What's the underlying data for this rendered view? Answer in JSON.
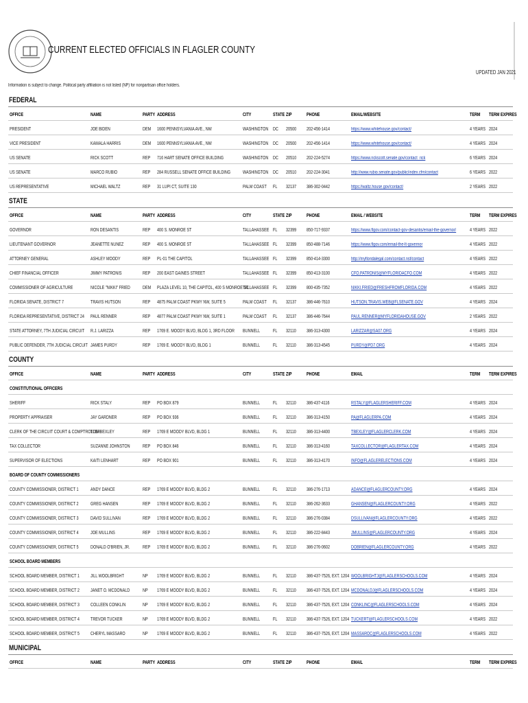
{
  "header": {
    "title": "CURRENT ELECTED OFFICIALS IN FLAGLER COUNTY",
    "updated": "UPDATED JAN 2021",
    "note": "Information is subject to change. Political party affiliation is not listed (NP) for nonpartisan office holders."
  },
  "sections": [
    {
      "title": "FEDERAL",
      "columns": [
        "OFFICE",
        "NAME",
        "PARTY",
        "ADDRESS",
        "CITY",
        "STATE",
        "ZIP",
        "PHONE",
        "EMAIL/WEBSITE",
        "TERM",
        "TERM EXPIRES"
      ],
      "groups": [
        {
          "rows": [
            [
              "PRESIDENT",
              "JOE BIDEN",
              "DEM",
              "1600 PENNSYLVANIA AVE., NW",
              "WASHINGTON",
              "DC",
              "20500",
              "202-456-1414",
              "https://www.whitehouse.gov/contact/",
              "4 YEARS",
              "2024"
            ],
            [
              "VICE PRESIDENT",
              "KAMALA HARRIS",
              "DEM",
              "1600 PENNSYLVANIA AVE., NW",
              "WASHINGTON",
              "DC",
              "20500",
              "202-456-1414",
              "https://www.whitehouse.gov/contact/",
              "4 YEARS",
              "2024"
            ],
            [
              "US SENATE",
              "RICK SCOTT",
              "REP",
              "716 HART SENATE OFFICE BUILDING",
              "WASHINGTON",
              "DC",
              "20510",
              "202-224-5274",
              "https://www.rickscott.senate.gov/contact_rick",
              "6 YEARS",
              "2024"
            ],
            [
              "US SENATE",
              "MARCO RUBIO",
              "REP",
              "284 RUSSELL SENATE OFFICE BUILDING",
              "WASHINGTON",
              "DC",
              "20510",
              "202-224-3041",
              "http://www.rubio.senate.gov/public/index.cfm/contact",
              "6 YEARS",
              "2022"
            ],
            [
              "US REPRESENTATIVE",
              "MICHAEL WALTZ",
              "REP",
              "31 LUPI CT, SUITE 130",
              "PALM COAST",
              "FL",
              "32137",
              "386-302-0442",
              "https://waltz.house.gov/contact/",
              "2 YEARS",
              "2022"
            ]
          ]
        }
      ]
    },
    {
      "title": "STATE",
      "columns": [
        "OFFICE",
        "NAME",
        "PARTY",
        "ADDRESS",
        "CITY",
        "STATE",
        "ZIP",
        "PHONE",
        "EMAIL / WEBSITE",
        "TERM",
        "TERM EXPIRES"
      ],
      "groups": [
        {
          "rows": [
            [
              "GOVERNOR",
              "RON DESANTIS",
              "REP",
              "400 S. MONROE ST",
              "TALLAHASSEE",
              "FL",
              "32399",
              "850-717-9337",
              "https://www.flgov.com/contact-gov-desantis/email-the-governor/",
              "4 YEARS",
              "2022"
            ],
            [
              "LIEUTENANT GOVERNOR",
              "JEANETTE NUNEZ",
              "REP",
              "400 S. MONROE ST",
              "TALLAHASSEE",
              "FL",
              "32399",
              "850-488-7146",
              "https://www.flgov.com/email-the-lt-governor",
              "4 YEARS",
              "2022"
            ],
            [
              "ATTORNEY GENERAL",
              "ASHLEY MOODY",
              "REP",
              "PL-01 THE CAPITOL",
              "TALLAHASSEE",
              "FL",
              "32399",
              "850-414-3300",
              "http://myfloridalegal.com/contact.nsf/contact",
              "4 YEARS",
              "2022"
            ],
            [
              "CHIEF FINANCIAL OFFICER",
              "JIMMY PATRONIS",
              "REP",
              "200 EAST GAINES STREET",
              "TALLAHASSEE",
              "FL",
              "32399",
              "850-413-3100",
              "CFO.PATRONIS@MYFLORIDACFO.COM",
              "4 YEARS",
              "2022"
            ],
            [
              "COMMISSIONER OF AGRICULTURE",
              "NICOLE \"NIKKI\" FRIED",
              "DEM",
              "PLAZA LEVEL 10, THE CAPITOL, 400 S MONROE ST.",
              "TALLAHASSEE",
              "FL",
              "32399",
              "800-435-7352",
              "NIKKI.FRIED@FRESHFROMFLORIDA.COM",
              "4 YEARS",
              "2022"
            ],
            [
              "FLORIDA SENATE, DISTRICT 7",
              "TRAVIS HUTSON",
              "REP",
              "4875 PALM COAST PKWY NW, SUITE 5",
              "PALM COAST",
              "FL",
              "32137",
              "386-446-7610",
              "HUTSON.TRAVIS.WEB@FLSENATE.GOV",
              "4 YEARS",
              "2024"
            ],
            [
              "FLORIDA REPRESENTATIVE, DISTRICT 24",
              "PAUL RENNER",
              "REP",
              "4877 PALM COAST PKWY NW, SUITE 1",
              "PALM COAST",
              "FL",
              "32137",
              "386-446-7644",
              "PAUL.RENNER@MYFLORIDAHOUSE.GOV",
              "2 YEARS",
              "2022"
            ],
            [
              "STATE ATTORNEY, 7TH JUDICIAL CIRCUIT",
              "R.J. LARIZZA",
              "REP",
              "1769 E. MOODY BLVD, BLDG 1, 3RD FLOOR",
              "BUNNELL",
              "FL",
              "32110",
              "386-313-4300",
              "LARIZZAR@SA07.ORG",
              "4 YEARS",
              "2024"
            ],
            [
              "PUBLIC DEFENDER, 7TH JUDICIAL CIRCUIT",
              "JAMES PURDY",
              "REP",
              "1769 E. MOODY BLVD, BLDG 1",
              "BUNNELL",
              "FL",
              "32110",
              "386-313-4545",
              "PURDY@PD7.ORG",
              "4 YEARS",
              "2024"
            ]
          ]
        }
      ]
    },
    {
      "title": "COUNTY",
      "columns": [
        "OFFICE",
        "NAME",
        "PARTY",
        "ADDRESS",
        "CITY",
        "STATE",
        "ZIP",
        "PHONE",
        "EMAIL",
        "TERM",
        "TERM EXPIRES"
      ],
      "groups": [
        {
          "title": "CONSTITUTIONAL OFFICERS",
          "rows": [
            [
              "SHERIFF",
              "RICK STALY",
              "REP",
              "PO BOX 879",
              "BUNNELL",
              "FL",
              "32110",
              "386-437-4116",
              "RSTALY@FLAGLERSHERIFF.COM",
              "4 YEARS",
              "2024"
            ],
            [
              "PROPERTY APPRAISER",
              "JAY GARDNER",
              "REP",
              "PO BOX 936",
              "BUNNELL",
              "FL",
              "32110",
              "386-313-4150",
              "PA@FLAGLERPA.COM",
              "4 YEARS",
              "2024"
            ],
            [
              "CLERK OF THE CIRCUIT COURT & COMPTROLLER",
              "TOM BEXLEY",
              "REP",
              "1769 E MOODY BLVD, BLDG 1",
              "BUNNELL",
              "FL",
              "32110",
              "386-313-4400",
              "TBEXLEY@FLAGLERCLERK.COM",
              "4 YEARS",
              "2024"
            ],
            [
              "TAX COLLECTOR",
              "SUZANNE JOHNSTON",
              "REP",
              "PO BOX 846",
              "BUNNELL",
              "FL",
              "32110",
              "386-313-4160",
              "TAXCOLLECTOR@FLAGLERTAX.COM",
              "4 YEARS",
              "2024"
            ],
            [
              "SUPERVISOR OF ELECTIONS",
              "KAITI LENHART",
              "REP",
              "PO BOX 901",
              "BUNNELL",
              "FL",
              "32110",
              "386-313-4170",
              "INFO@FLAGLERELECTIONS.COM",
              "4 YEARS",
              "2024"
            ]
          ]
        },
        {
          "title": "BOARD OF COUNTY COMMISSIONERS",
          "rows": [
            [
              "COUNTY COMMISSIONER, DISTRICT 1",
              "ANDY DANCE",
              "REP",
              "1769 E MOODY BLVD, BLDG 2",
              "BUNNELL",
              "FL",
              "32110",
              "386-276-1713",
              "ADANCE@FLAGLERCOUNTY.ORG",
              "4 YEARS",
              "2024"
            ],
            [
              "COUNTY COMMISSIONER, DISTRICT 2",
              "GREG HANSEN",
              "REP",
              "1769 E MOODY BLVD, BLDG 2",
              "BUNNELL",
              "FL",
              "32110",
              "386-262-3633",
              "GHANSEN@FLAGLERCOUNTY.ORG",
              "4 YEARS",
              "2022"
            ],
            [
              "COUNTY COMMISSIONER, DISTRICT 3",
              "DAVID SULLIVAN",
              "REP",
              "1769 E MOODY BLVD, BLDG 2",
              "BUNNELL",
              "FL",
              "32110",
              "386-276-0384",
              "DSULLIVAN@FLAGLERCOUNTY.ORG",
              "4 YEARS",
              "2022"
            ],
            [
              "COUNTY COMMISSIONER, DISTRICT 4",
              "JOE MULLINS",
              "REP",
              "1769 E MOODY BLVD, BLDG 2",
              "BUNNELL",
              "FL",
              "32110",
              "386-222-8443",
              "JMULLINS@FLAGLERCOUNTY.ORG",
              "4 YEARS",
              "2024"
            ],
            [
              "COUNTY COMMISSIONER, DISTRICT 5",
              "DONALD O'BRIEN, JR.",
              "REP",
              "1769 E MOODY BLVD, BLDG 2",
              "BUNNELL",
              "FL",
              "32110",
              "386-276-0602",
              "DOBRIEN@FLAGLERCOUNTY.ORG",
              "4 YEARS",
              "2022"
            ]
          ]
        },
        {
          "title": "SCHOOL BOARD MEMBERS",
          "rows": [
            [
              "SCHOOL BOARD MEMBER, DISTRICT 1",
              "JILL WOOLBRIGHT",
              "NP",
              "1769 E MOODY BLVD, BLDG 2",
              "BUNNELL",
              "FL",
              "32110",
              "386-437-7526, EXT. 1204",
              "WOOLBRIGHTJ@FLAGLERSCHOOLS.COM",
              "4 YEARS",
              "2024"
            ],
            [
              "SCHOOL BOARD MEMBER, DISTRICT 2",
              "JANET O. MCDONALD",
              "NP",
              "1769 E MOODY BLVD, BLDG 2",
              "BUNNELL",
              "FL",
              "32110",
              "386-437-7526, EXT. 1204",
              "MCDONALDJ@FLAGLERSCHOOLS.COM",
              "4 YEARS",
              "2024"
            ],
            [
              "SCHOOL BOARD MEMBER, DISTRICT 3",
              "COLLEEN CONKLIN",
              "NP",
              "1769 E MOODY BLVD, BLDG 2",
              "BUNNELL",
              "FL",
              "32110",
              "386-437-7526, EXT. 1204",
              "CONKLINC@FLAGLERSCHOOLS.COM",
              "4 YEARS",
              "2024"
            ],
            [
              "SCHOOL BOARD MEMBER, DISTRICT 4",
              "TREVOR TUCKER",
              "NP",
              "1769 E MOODY BLVD, BLDG 2",
              "BUNNELL",
              "FL",
              "32110",
              "386-437-7526, EXT. 1204",
              "TUCKERT@FLAGLERSCHOOLS.COM",
              "4 YEARS",
              "2022"
            ],
            [
              "SCHOOL BOARD MEMBER, DISTRICT 5",
              "CHERYL MASSARO",
              "NP",
              "1769 E MOODY BLVD, BLDG 2",
              "BUNNELL",
              "FL",
              "32110",
              "386-437-7526, EXT. 1204",
              "MASSAROC@FLAGLERSCHOOLS.COM",
              "4 YEARS",
              "2022"
            ]
          ]
        }
      ]
    },
    {
      "title": "MUNICIPAL",
      "columns": [
        "OFFICE",
        "NAME",
        "PARTY",
        "ADDRESS",
        "CITY",
        "STATE",
        "ZIP",
        "PHONE",
        "EMAIL",
        "TERM",
        "TERM EXPIRES"
      ],
      "groups": []
    }
  ]
}
